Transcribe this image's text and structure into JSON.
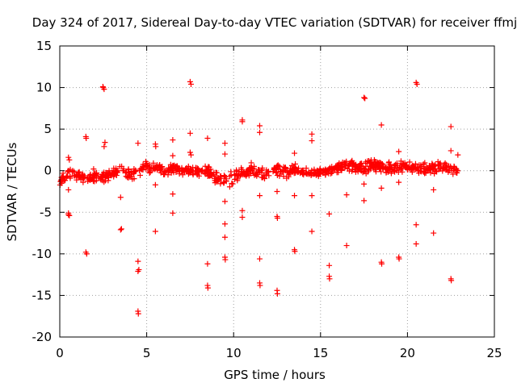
{
  "chart_data": {
    "type": "scatter",
    "title": "Day 324 of 2017, Sidereal Day-to-day VTEC variation (SDTVAR) for receiver ffmj",
    "xlabel": "GPS time / hours",
    "ylabel": "SDTVAR / TECUs",
    "xlim": [
      0,
      25
    ],
    "ylim": [
      -20,
      15
    ],
    "xticks": [
      0,
      5,
      10,
      15,
      20,
      25
    ],
    "yticks": [
      -20,
      -15,
      -10,
      -5,
      0,
      5,
      10,
      15
    ],
    "xtick_labels": [
      "0",
      "5",
      "10",
      "15",
      "20",
      "25"
    ],
    "ytick_labels": [
      "-20",
      "-15",
      "-10",
      "-5",
      "0",
      "5",
      "10",
      "15"
    ],
    "grid": true,
    "marker": "+",
    "color": "#ff0000",
    "band": {
      "x": [
        0.0,
        0.5,
        1.0,
        1.5,
        2.0,
        2.5,
        3.0,
        3.5,
        4.0,
        4.5,
        5.0,
        5.5,
        6.0,
        6.5,
        7.0,
        7.5,
        8.0,
        8.5,
        9.0,
        9.5,
        10.0,
        10.5,
        11.0,
        11.5,
        12.0,
        12.5,
        13.0,
        13.5,
        14.0,
        14.5,
        15.0,
        15.5,
        16.0,
        16.5,
        17.0,
        17.5,
        18.0,
        18.5,
        19.0,
        19.5,
        20.0,
        20.5,
        21.0,
        21.5,
        22.0,
        22.5,
        22.9
      ],
      "center": [
        -1.0,
        -0.4,
        -0.6,
        -0.9,
        -0.5,
        -0.8,
        -0.4,
        0.0,
        -0.3,
        -0.1,
        0.5,
        0.3,
        0.0,
        0.2,
        -0.1,
        0.2,
        -0.2,
        0.0,
        -0.8,
        -1.3,
        -0.8,
        -0.3,
        0.0,
        -0.1,
        -0.3,
        0.1,
        -0.3,
        0.2,
        0.0,
        -0.4,
        -0.2,
        0.0,
        0.3,
        0.6,
        0.5,
        0.3,
        0.7,
        0.5,
        0.2,
        0.6,
        0.5,
        0.3,
        0.2,
        0.3,
        0.5,
        0.1,
        0.0
      ],
      "halfwidth": [
        0.8,
        0.8,
        0.7,
        0.8,
        0.9,
        0.8,
        0.6,
        0.7,
        0.8,
        0.9,
        1.0,
        0.8,
        0.6,
        0.7,
        0.6,
        0.6,
        0.7,
        0.8,
        1.0,
        1.1,
        1.0,
        0.8,
        1.0,
        0.9,
        0.7,
        0.8,
        0.8,
        0.9,
        0.8,
        0.8,
        0.7,
        0.6,
        0.6,
        0.7,
        0.8,
        0.9,
        0.8,
        0.8,
        0.9,
        0.8,
        0.8,
        0.8,
        0.8,
        0.8,
        0.8,
        0.7,
        0.6
      ],
      "count": 900
    },
    "outliers": [
      {
        "x": 0.5,
        "y": 1.6
      },
      {
        "x": 0.55,
        "y": 1.3
      },
      {
        "x": 0.5,
        "y": -2.3
      },
      {
        "x": 0.5,
        "y": -5.1
      },
      {
        "x": 0.55,
        "y": -5.4
      },
      {
        "x": 0.5,
        "y": -5.3
      },
      {
        "x": 1.5,
        "y": 4.1
      },
      {
        "x": 1.52,
        "y": 3.9
      },
      {
        "x": 1.5,
        "y": -9.8
      },
      {
        "x": 1.55,
        "y": -10.0
      },
      {
        "x": 2.5,
        "y": 10.0
      },
      {
        "x": 2.55,
        "y": 9.8
      },
      {
        "x": 2.48,
        "y": 10.1
      },
      {
        "x": 2.6,
        "y": 3.4
      },
      {
        "x": 2.55,
        "y": 2.9
      },
      {
        "x": 3.5,
        "y": -3.2
      },
      {
        "x": 3.5,
        "y": -7.1
      },
      {
        "x": 3.55,
        "y": -7.0
      },
      {
        "x": 4.5,
        "y": 3.3
      },
      {
        "x": 4.5,
        "y": -10.9
      },
      {
        "x": 4.55,
        "y": -11.9
      },
      {
        "x": 4.5,
        "y": -12.1
      },
      {
        "x": 4.5,
        "y": -16.9
      },
      {
        "x": 4.52,
        "y": -17.2
      },
      {
        "x": 5.5,
        "y": 3.2
      },
      {
        "x": 5.52,
        "y": 2.9
      },
      {
        "x": 5.5,
        "y": -1.7
      },
      {
        "x": 5.5,
        "y": -7.3
      },
      {
        "x": 6.5,
        "y": 3.7
      },
      {
        "x": 6.5,
        "y": 1.8
      },
      {
        "x": 6.5,
        "y": -2.8
      },
      {
        "x": 6.5,
        "y": -5.1
      },
      {
        "x": 7.5,
        "y": 10.7
      },
      {
        "x": 7.55,
        "y": 10.4
      },
      {
        "x": 7.5,
        "y": 4.5
      },
      {
        "x": 7.5,
        "y": 2.2
      },
      {
        "x": 7.55,
        "y": 1.9
      },
      {
        "x": 8.5,
        "y": 3.9
      },
      {
        "x": 8.5,
        "y": -11.2
      },
      {
        "x": 8.5,
        "y": -13.8
      },
      {
        "x": 8.52,
        "y": -14.1
      },
      {
        "x": 9.5,
        "y": 3.3
      },
      {
        "x": 9.5,
        "y": 2.0
      },
      {
        "x": 9.5,
        "y": -3.7
      },
      {
        "x": 9.5,
        "y": -6.4
      },
      {
        "x": 9.5,
        "y": -8.0
      },
      {
        "x": 9.5,
        "y": -10.4
      },
      {
        "x": 9.52,
        "y": -10.7
      },
      {
        "x": 10.5,
        "y": 6.1
      },
      {
        "x": 10.5,
        "y": 5.9
      },
      {
        "x": 10.5,
        "y": -4.8
      },
      {
        "x": 10.5,
        "y": -5.6
      },
      {
        "x": 11.5,
        "y": 5.4
      },
      {
        "x": 11.5,
        "y": 4.6
      },
      {
        "x": 11.5,
        "y": -3.0
      },
      {
        "x": 11.5,
        "y": -10.6
      },
      {
        "x": 11.5,
        "y": -13.5
      },
      {
        "x": 11.52,
        "y": -13.8
      },
      {
        "x": 12.5,
        "y": -2.5
      },
      {
        "x": 12.5,
        "y": -5.5
      },
      {
        "x": 12.52,
        "y": -5.7
      },
      {
        "x": 12.5,
        "y": -14.4
      },
      {
        "x": 12.52,
        "y": -14.8
      },
      {
        "x": 13.5,
        "y": 2.1
      },
      {
        "x": 13.5,
        "y": -3.0
      },
      {
        "x": 13.5,
        "y": -9.5
      },
      {
        "x": 13.52,
        "y": -9.7
      },
      {
        "x": 14.5,
        "y": 4.4
      },
      {
        "x": 14.5,
        "y": 3.6
      },
      {
        "x": 14.5,
        "y": -3.0
      },
      {
        "x": 14.5,
        "y": -7.3
      },
      {
        "x": 15.5,
        "y": -5.2
      },
      {
        "x": 15.5,
        "y": -11.4
      },
      {
        "x": 15.5,
        "y": -12.7
      },
      {
        "x": 15.52,
        "y": -13.0
      },
      {
        "x": 16.5,
        "y": -2.9
      },
      {
        "x": 16.5,
        "y": -9.0
      },
      {
        "x": 17.5,
        "y": 8.8
      },
      {
        "x": 17.55,
        "y": 8.7
      },
      {
        "x": 17.5,
        "y": -1.6
      },
      {
        "x": 17.5,
        "y": -3.6
      },
      {
        "x": 18.5,
        "y": 5.5
      },
      {
        "x": 18.5,
        "y": -2.1
      },
      {
        "x": 18.5,
        "y": -11.0
      },
      {
        "x": 18.52,
        "y": -11.2
      },
      {
        "x": 19.5,
        "y": 2.3
      },
      {
        "x": 19.5,
        "y": -1.4
      },
      {
        "x": 19.5,
        "y": -10.4
      },
      {
        "x": 19.52,
        "y": -10.6
      },
      {
        "x": 20.5,
        "y": 10.6
      },
      {
        "x": 20.55,
        "y": 10.4
      },
      {
        "x": 20.5,
        "y": -6.5
      },
      {
        "x": 20.5,
        "y": -8.8
      },
      {
        "x": 21.5,
        "y": -2.3
      },
      {
        "x": 21.5,
        "y": -7.5
      },
      {
        "x": 22.5,
        "y": 5.3
      },
      {
        "x": 22.5,
        "y": 2.4
      },
      {
        "x": 22.5,
        "y": -13.0
      },
      {
        "x": 22.52,
        "y": -13.2
      },
      {
        "x": 22.9,
        "y": 1.9
      }
    ]
  }
}
